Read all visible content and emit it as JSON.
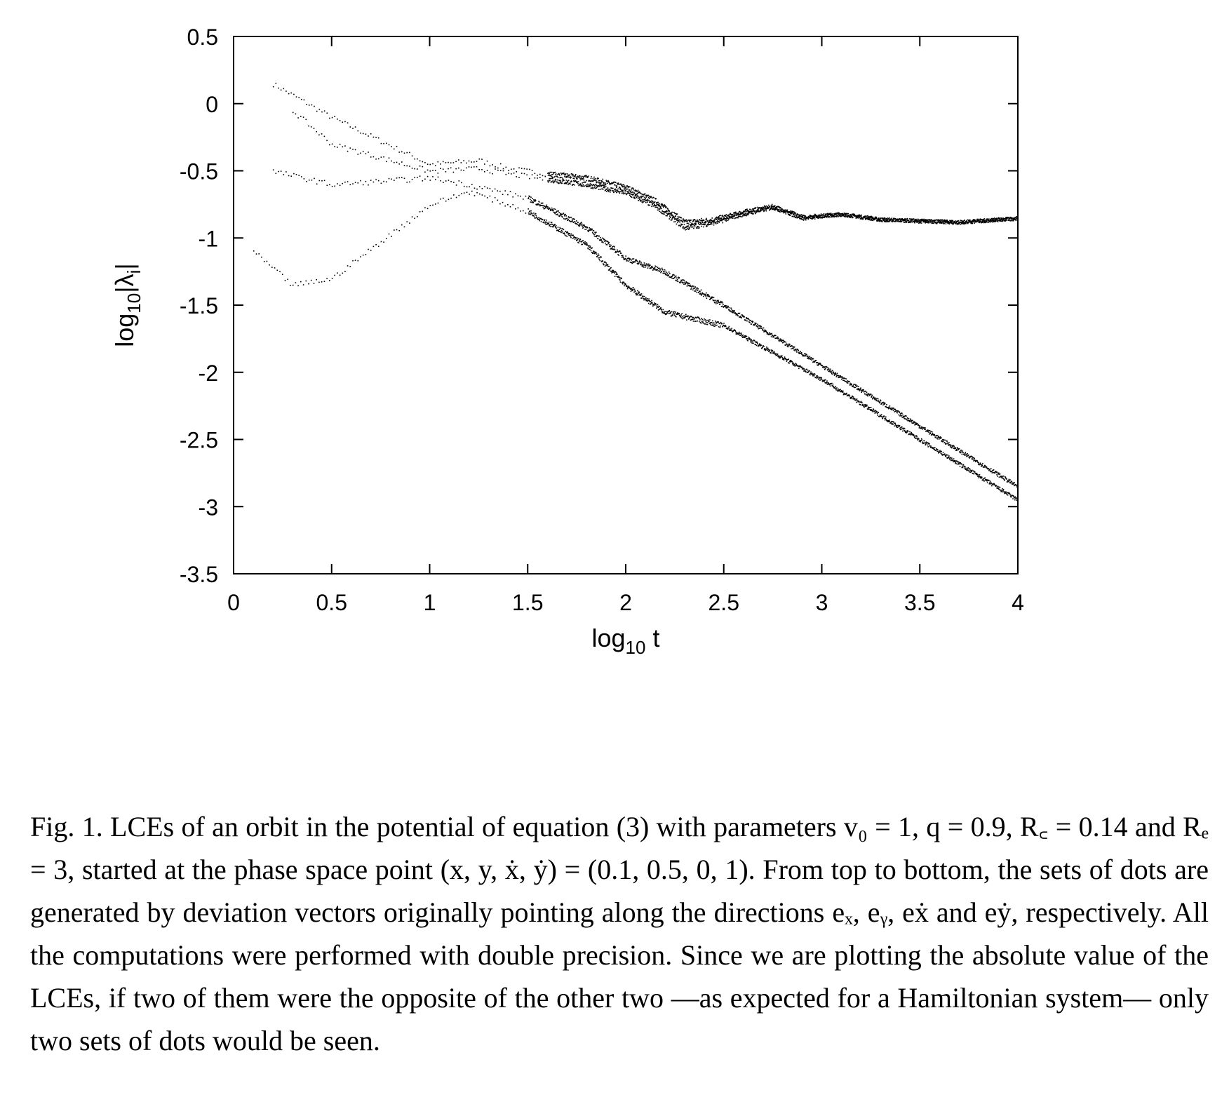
{
  "chart_data": {
    "type": "scatter",
    "xlabel": "log10 t",
    "ylabel": "log10|λi|",
    "xlim": [
      0,
      4
    ],
    "ylim": [
      -3.5,
      0.5
    ],
    "x_ticks": [
      "0",
      "0.5",
      "1",
      "1.5",
      "2",
      "2.5",
      "3",
      "3.5",
      "4"
    ],
    "y_ticks": [
      "0.5",
      "0",
      "-0.5",
      "-1",
      "-1.5",
      "-2",
      "-2.5",
      "-3",
      "-3.5"
    ],
    "grid": false,
    "legend": "none",
    "marker_color": "#000000",
    "series": [
      {
        "x": [
          0.2,
          0.5,
          1.0,
          1.25,
          1.4,
          1.6,
          1.8,
          2.0,
          2.15,
          2.3,
          2.45,
          2.6,
          2.75,
          2.9,
          3.1,
          3.3,
          3.5,
          3.7,
          4.0
        ],
        "y": [
          0.15,
          -0.1,
          -0.45,
          -0.42,
          -0.48,
          -0.52,
          -0.55,
          -0.62,
          -0.72,
          -0.88,
          -0.86,
          -0.8,
          -0.76,
          -0.84,
          -0.82,
          -0.86,
          -0.87,
          -0.88,
          -0.85
        ]
      },
      {
        "x": [
          0.3,
          0.5,
          1.0,
          1.25,
          1.4,
          1.6,
          1.8,
          2.0,
          2.15,
          2.3,
          2.45,
          2.6,
          2.75,
          2.9,
          3.1,
          3.3,
          3.5,
          3.7,
          4.0
        ],
        "y": [
          -0.05,
          -0.3,
          -0.5,
          -0.48,
          -0.52,
          -0.56,
          -0.6,
          -0.66,
          -0.76,
          -0.92,
          -0.88,
          -0.82,
          -0.77,
          -0.85,
          -0.82,
          -0.86,
          -0.87,
          -0.88,
          -0.85
        ]
      },
      {
        "x": [
          0.2,
          0.5,
          1.0,
          1.2,
          1.5,
          1.8,
          2.0,
          2.2,
          2.5,
          3.0,
          3.5,
          4.0
        ],
        "y": [
          -0.5,
          -0.6,
          -0.55,
          -0.6,
          -0.7,
          -0.92,
          -1.15,
          -1.25,
          -1.5,
          -1.95,
          -2.4,
          -2.85
        ]
      },
      {
        "x": [
          0.1,
          0.3,
          0.5,
          1.0,
          1.2,
          1.5,
          1.8,
          2.0,
          2.2,
          2.5,
          3.0,
          3.5,
          4.0
        ],
        "y": [
          -1.1,
          -1.35,
          -1.3,
          -0.75,
          -0.65,
          -0.8,
          -1.05,
          -1.35,
          -1.55,
          -1.65,
          -2.05,
          -2.5,
          -2.95
        ]
      }
    ]
  },
  "caption": {
    "text": "Fig. 1. LCEs of an orbit in the potential of equation (3) with parameters v₀ = 1, q = 0.9, R꜀ = 0.14 and Rₑ = 3, started at the phase space point (x, y, ẋ, ẏ) = (0.1, 0.5, 0, 1). From top to bottom, the sets of dots are generated by deviation vectors originally pointing along the directions eₓ, eᵧ, eẋ and eẏ, respectively. All the computations were performed with double precision. Since we are plotting the absolute value of the LCEs, if two of them were the opposite of the other two —as expected for a Hamiltonian system— only two sets of dots would be seen."
  }
}
